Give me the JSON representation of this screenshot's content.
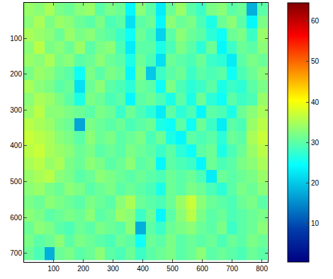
{
  "chart_data": {
    "type": "heatmap",
    "color": "Jet",
    "x": [
      18,
      52,
      86,
      120,
      154,
      188,
      222,
      256,
      290,
      324,
      358,
      392,
      426,
      460,
      494,
      528,
      562,
      596,
      630,
      664,
      698,
      732,
      766,
      800
    ],
    "y": [
      18,
      54,
      90,
      126,
      162,
      198,
      234,
      270,
      306,
      342,
      378,
      414,
      450,
      486,
      522,
      558,
      594,
      630,
      666,
      702
    ],
    "cells": [
      [
        34,
        33,
        35,
        32,
        31,
        33,
        34,
        30,
        32,
        31,
        24,
        33,
        30,
        23,
        31,
        34,
        30,
        28,
        32,
        33,
        30,
        31,
        18,
        30
      ],
      [
        33,
        35,
        32,
        34,
        33,
        31,
        30,
        32,
        29,
        30,
        22,
        30,
        31,
        24,
        33,
        31,
        32,
        29,
        26,
        31,
        33,
        30,
        24,
        32
      ],
      [
        35,
        34,
        33,
        31,
        34,
        32,
        33,
        31,
        30,
        28,
        25,
        31,
        29,
        21,
        30,
        33,
        31,
        30,
        27,
        25,
        31,
        32,
        28,
        34
      ],
      [
        33,
        36,
        32,
        33,
        31,
        34,
        30,
        32,
        33,
        29,
        23,
        30,
        30,
        26,
        29,
        32,
        30,
        27,
        31,
        24,
        28,
        31,
        30,
        33
      ],
      [
        34,
        33,
        35,
        32,
        33,
        30,
        31,
        33,
        31,
        30,
        26,
        31,
        29,
        22,
        31,
        30,
        29,
        31,
        28,
        27,
        23,
        30,
        32,
        31
      ],
      [
        32,
        34,
        33,
        31,
        30,
        25,
        32,
        30,
        32,
        31,
        24,
        32,
        20,
        28,
        30,
        31,
        28,
        30,
        29,
        30,
        25,
        29,
        31,
        33
      ],
      [
        35,
        33,
        32,
        30,
        31,
        22,
        31,
        33,
        30,
        29,
        27,
        31,
        30,
        25,
        32,
        29,
        27,
        28,
        30,
        26,
        28,
        27,
        30,
        32
      ],
      [
        33,
        35,
        34,
        32,
        30,
        26,
        32,
        31,
        29,
        30,
        24,
        30,
        31,
        29,
        26,
        30,
        26,
        31,
        27,
        25,
        30,
        28,
        29,
        34
      ],
      [
        34,
        36,
        33,
        33,
        32,
        31,
        30,
        32,
        31,
        28,
        31,
        29,
        27,
        23,
        30,
        27,
        29,
        24,
        30,
        29,
        26,
        31,
        33,
        35
      ],
      [
        36,
        35,
        34,
        32,
        31,
        17,
        32,
        31,
        30,
        31,
        29,
        30,
        31,
        26,
        25,
        30,
        25,
        31,
        28,
        23,
        30,
        29,
        34,
        36
      ],
      [
        37,
        36,
        35,
        33,
        32,
        30,
        33,
        31,
        32,
        30,
        31,
        32,
        29,
        31,
        26,
        24,
        30,
        29,
        30,
        27,
        31,
        30,
        35,
        37
      ],
      [
        36,
        37,
        35,
        34,
        33,
        31,
        32,
        30,
        31,
        30,
        32,
        31,
        30,
        28,
        30,
        27,
        25,
        30,
        31,
        26,
        29,
        31,
        34,
        36
      ],
      [
        35,
        36,
        34,
        35,
        32,
        31,
        33,
        32,
        30,
        31,
        33,
        30,
        31,
        24,
        30,
        29,
        28,
        24,
        31,
        29,
        30,
        32,
        33,
        35
      ],
      [
        34,
        35,
        36,
        33,
        32,
        30,
        31,
        33,
        32,
        31,
        30,
        31,
        30,
        29,
        31,
        30,
        31,
        29,
        23,
        31,
        30,
        31,
        32,
        34
      ],
      [
        33,
        34,
        32,
        31,
        33,
        32,
        30,
        31,
        32,
        30,
        31,
        30,
        29,
        26,
        31,
        30,
        32,
        31,
        29,
        27,
        30,
        32,
        31,
        33
      ],
      [
        32,
        31,
        33,
        32,
        31,
        30,
        32,
        31,
        30,
        33,
        35,
        31,
        30,
        29,
        31,
        34,
        37,
        33,
        31,
        30,
        29,
        31,
        32,
        30
      ],
      [
        33,
        32,
        30,
        31,
        32,
        31,
        33,
        30,
        31,
        34,
        33,
        28,
        31,
        24,
        30,
        33,
        36,
        32,
        30,
        31,
        29,
        30,
        31,
        32
      ],
      [
        31,
        33,
        32,
        30,
        29,
        31,
        30,
        32,
        31,
        30,
        33,
        18,
        30,
        28,
        31,
        32,
        33,
        31,
        30,
        32,
        28,
        30,
        31,
        33
      ],
      [
        32,
        30,
        31,
        33,
        30,
        32,
        31,
        30,
        29,
        31,
        30,
        25,
        31,
        30,
        32,
        30,
        31,
        30,
        31,
        29,
        31,
        30,
        32,
        31
      ],
      [
        31,
        29,
        18,
        31,
        32,
        30,
        31,
        33,
        30,
        29,
        31,
        28,
        30,
        31,
        32,
        30,
        31,
        33,
        30,
        31,
        30,
        29,
        31,
        30
      ]
    ],
    "xlim": [
      1,
      820
    ],
    "xticks": [
      100,
      200,
      300,
      400,
      500,
      600,
      700,
      800
    ],
    "ylim": [
      724,
      1
    ],
    "yticks": [
      100,
      200,
      300,
      400,
      500,
      600,
      700
    ],
    "zlim": [
      0.5,
      64.5
    ],
    "zticks": [
      10,
      20,
      30,
      40,
      50,
      60
    ]
  }
}
